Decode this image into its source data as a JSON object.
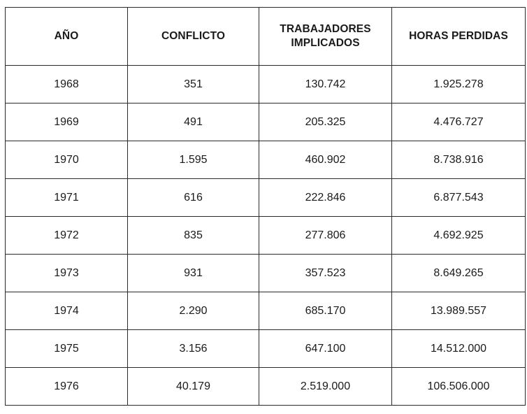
{
  "table": {
    "headers": [
      "AÑO",
      "CONFLICTO",
      "TRABAJADORES\nIMPLICADOS",
      "HORAS PERDIDAS"
    ],
    "rows": [
      [
        "1968",
        "351",
        "130.742",
        "1.925.278"
      ],
      [
        "1969",
        "491",
        "205.325",
        "4.476.727"
      ],
      [
        "1970",
        "1.595",
        "460.902",
        "8.738.916"
      ],
      [
        "1971",
        "616",
        "222.846",
        "6.877.543"
      ],
      [
        "1972",
        "835",
        "277.806",
        "4.692.925"
      ],
      [
        "1973",
        "931",
        "357.523",
        "8.649.265"
      ],
      [
        "1974",
        "2.290",
        "685.170",
        "13.989.557"
      ],
      [
        "1975",
        "3.156",
        "647.100",
        "14.512.000"
      ],
      [
        "1976",
        "40.179",
        "2.519.000",
        "106.506.000"
      ]
    ]
  }
}
